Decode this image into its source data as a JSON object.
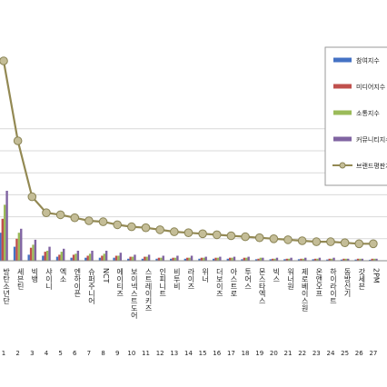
{
  "chart_data": {
    "type": "bar",
    "title": "",
    "xlabel": "",
    "ylabel": "",
    "grid": true,
    "legend_position": "right",
    "ranks": [
      "1",
      "2",
      "3",
      "4",
      "5",
      "6",
      "7",
      "8",
      "9",
      "10",
      "11",
      "12",
      "13",
      "14",
      "15",
      "16",
      "17",
      "18",
      "19",
      "20",
      "21",
      "22",
      "23",
      "24",
      "25",
      "26",
      "27"
    ],
    "categories": [
      "방탄소년단",
      "세븐틴",
      "빅뱅",
      "샤이니",
      "엑소",
      "엔하이픈",
      "슈퍼주니어",
      "NCT",
      "에이티즈",
      "보이넥스트도어",
      "스트레이키즈",
      "인피니트",
      "비투비",
      "라이즈",
      "위너",
      "더보이즈",
      "아스트로",
      "투어스",
      "몬스타엑스",
      "빅스",
      "워너원",
      "제로베이스원",
      "온앤오프",
      "하이라이트",
      "동방신기",
      "갓세븐",
      "2PM"
    ],
    "series": [
      {
        "name": "참여지수",
        "color": "#4472c4",
        "values": [
          28,
          14,
          6,
          5,
          4,
          3,
          3,
          3,
          3,
          2,
          2,
          2,
          2,
          2,
          2,
          2,
          2,
          1.5,
          1.5,
          1.5,
          1.5,
          1.5,
          1.5,
          1.2,
          1.2,
          1.2,
          1
        ]
      },
      {
        "name": "미디어지수",
        "color": "#c0504d",
        "values": [
          42,
          22,
          13,
          9,
          6,
          6,
          5,
          5,
          5,
          4,
          4,
          3,
          3,
          3,
          3,
          3,
          3,
          3,
          2,
          2,
          2,
          2,
          2,
          2,
          2,
          2,
          2
        ]
      },
      {
        "name": "소통지수",
        "color": "#9bbb59",
        "values": [
          56,
          28,
          16,
          10,
          9,
          7,
          7,
          7,
          5,
          4,
          4,
          3,
          3,
          3,
          3,
          3,
          3,
          3,
          3,
          2,
          2,
          2,
          2,
          2,
          2,
          2,
          2
        ]
      },
      {
        "name": "커뮤니티지수",
        "color": "#8064a2",
        "values": [
          70,
          32,
          21,
          14,
          12,
          10,
          10,
          10,
          8,
          6,
          6,
          5,
          5,
          5,
          4,
          4,
          4,
          4,
          3,
          3,
          3,
          3,
          3,
          3,
          2,
          2,
          2
        ]
      },
      {
        "name": "브랜드평판지수",
        "color": "#938953",
        "type": "line",
        "values": [
          200,
          120,
          64,
          48,
          46,
          43,
          40,
          39,
          36,
          34,
          33,
          31,
          29,
          28,
          27,
          26,
          25,
          24,
          23,
          22,
          21,
          20,
          19,
          19,
          18,
          17,
          17
        ]
      }
    ],
    "ylim": [
      0,
      220
    ]
  }
}
